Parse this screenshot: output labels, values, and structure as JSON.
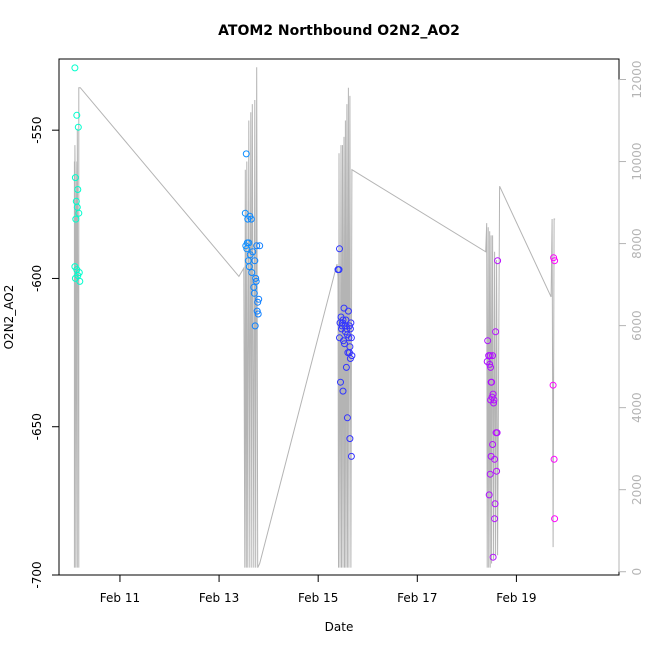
{
  "chart_data": {
    "type": "scatter",
    "title": "ATOM2 Northbound O2N2_AO2",
    "xlabel": "Date",
    "ylabel": "O2N2_AO2",
    "x_ticks": [
      {
        "value": 11.0,
        "label": "Feb 11"
      },
      {
        "value": 13.0,
        "label": "Feb 13"
      },
      {
        "value": 15.0,
        "label": "Feb 15"
      },
      {
        "value": 17.0,
        "label": "Feb 17"
      },
      {
        "value": 19.0,
        "label": "Feb 19"
      }
    ],
    "xlim": [
      9.77,
      21.07
    ],
    "ylim": [
      -700,
      -526
    ],
    "y_ticks": [
      -700,
      -650,
      -600,
      -550
    ],
    "y2lim": [
      -80,
      12500
    ],
    "y2_ticks": [
      0,
      2000,
      4000,
      6000,
      8000,
      10000,
      12000
    ],
    "points": [
      {
        "x": 10.09,
        "y": -529.0
      },
      {
        "x": 10.13,
        "y": -545.0
      },
      {
        "x": 10.16,
        "y": -549.0
      },
      {
        "x": 10.1,
        "y": -566.0
      },
      {
        "x": 10.15,
        "y": -570.0
      },
      {
        "x": 10.12,
        "y": -574.0
      },
      {
        "x": 10.14,
        "y": -576.0
      },
      {
        "x": 10.17,
        "y": -578.0
      },
      {
        "x": 10.11,
        "y": -580.0
      },
      {
        "x": 10.09,
        "y": -596.0
      },
      {
        "x": 10.13,
        "y": -597.0
      },
      {
        "x": 10.18,
        "y": -598.0
      },
      {
        "x": 10.15,
        "y": -599.0
      },
      {
        "x": 10.1,
        "y": -600.0
      },
      {
        "x": 10.19,
        "y": -601.0
      },
      {
        "x": 13.55,
        "y": -558.0
      },
      {
        "x": 13.53,
        "y": -578.0
      },
      {
        "x": 13.62,
        "y": -579.0
      },
      {
        "x": 13.58,
        "y": -580.0
      },
      {
        "x": 13.65,
        "y": -580.0
      },
      {
        "x": 13.57,
        "y": -588.0
      },
      {
        "x": 13.6,
        "y": -588.0
      },
      {
        "x": 13.76,
        "y": -589.0
      },
      {
        "x": 13.82,
        "y": -589.0
      },
      {
        "x": 13.54,
        "y": -589.0
      },
      {
        "x": 13.56,
        "y": -590.0
      },
      {
        "x": 13.68,
        "y": -591.0
      },
      {
        "x": 13.63,
        "y": -592.0
      },
      {
        "x": 13.59,
        "y": -594.0
      },
      {
        "x": 13.72,
        "y": -594.0
      },
      {
        "x": 13.61,
        "y": -596.0
      },
      {
        "x": 13.66,
        "y": -598.0
      },
      {
        "x": 13.74,
        "y": -600.0
      },
      {
        "x": 13.75,
        "y": -601.0
      },
      {
        "x": 13.7,
        "y": -603.0
      },
      {
        "x": 13.71,
        "y": -605.0
      },
      {
        "x": 13.8,
        "y": -607.0
      },
      {
        "x": 13.78,
        "y": -608.0
      },
      {
        "x": 13.77,
        "y": -611.0
      },
      {
        "x": 13.79,
        "y": -612.0
      },
      {
        "x": 13.73,
        "y": -616.0
      },
      {
        "x": 15.43,
        "y": -590.0
      },
      {
        "x": 15.4,
        "y": -597.0
      },
      {
        "x": 15.42,
        "y": -597.0
      },
      {
        "x": 15.52,
        "y": -610.0
      },
      {
        "x": 15.61,
        "y": -611.0
      },
      {
        "x": 15.46,
        "y": -613.0
      },
      {
        "x": 15.5,
        "y": -614.0
      },
      {
        "x": 15.56,
        "y": -614.0
      },
      {
        "x": 15.44,
        "y": -615.0
      },
      {
        "x": 15.49,
        "y": -615.0
      },
      {
        "x": 15.66,
        "y": -615.0
      },
      {
        "x": 15.48,
        "y": -616.0
      },
      {
        "x": 15.54,
        "y": -616.0
      },
      {
        "x": 15.63,
        "y": -616.0
      },
      {
        "x": 15.47,
        "y": -617.0
      },
      {
        "x": 15.58,
        "y": -617.0
      },
      {
        "x": 15.55,
        "y": -618.0
      },
      {
        "x": 15.65,
        "y": -617.0
      },
      {
        "x": 15.59,
        "y": -619.0
      },
      {
        "x": 15.43,
        "y": -620.0
      },
      {
        "x": 15.62,
        "y": -620.0
      },
      {
        "x": 15.67,
        "y": -620.0
      },
      {
        "x": 15.51,
        "y": -621.0
      },
      {
        "x": 15.53,
        "y": -622.0
      },
      {
        "x": 15.64,
        "y": -623.0
      },
      {
        "x": 15.6,
        "y": -625.0
      },
      {
        "x": 15.63,
        "y": -625.0
      },
      {
        "x": 15.68,
        "y": -626.0
      },
      {
        "x": 15.65,
        "y": -627.0
      },
      {
        "x": 15.57,
        "y": -630.0
      },
      {
        "x": 15.45,
        "y": -635.0
      },
      {
        "x": 15.5,
        "y": -638.0
      },
      {
        "x": 15.59,
        "y": -647.0
      },
      {
        "x": 15.64,
        "y": -654.0
      },
      {
        "x": 15.67,
        "y": -660.0
      },
      {
        "x": 18.62,
        "y": -594.0
      },
      {
        "x": 18.58,
        "y": -618.0
      },
      {
        "x": 18.42,
        "y": -621.0
      },
      {
        "x": 18.44,
        "y": -626.0
      },
      {
        "x": 18.47,
        "y": -626.0
      },
      {
        "x": 18.52,
        "y": -626.0
      },
      {
        "x": 18.41,
        "y": -628.0
      },
      {
        "x": 18.46,
        "y": -629.0
      },
      {
        "x": 18.48,
        "y": -630.0
      },
      {
        "x": 18.49,
        "y": -635.0
      },
      {
        "x": 18.5,
        "y": -635.0
      },
      {
        "x": 18.51,
        "y": -640.0
      },
      {
        "x": 18.53,
        "y": -639.0
      },
      {
        "x": 18.55,
        "y": -641.0
      },
      {
        "x": 18.48,
        "y": -641.0
      },
      {
        "x": 18.54,
        "y": -642.0
      },
      {
        "x": 18.61,
        "y": -652.0
      },
      {
        "x": 18.59,
        "y": -652.0
      },
      {
        "x": 18.52,
        "y": -656.0
      },
      {
        "x": 18.49,
        "y": -660.0
      },
      {
        "x": 18.56,
        "y": -661.0
      },
      {
        "x": 18.6,
        "y": -665.0
      },
      {
        "x": 18.47,
        "y": -666.0
      },
      {
        "x": 18.45,
        "y": -673.0
      },
      {
        "x": 18.57,
        "y": -676.0
      },
      {
        "x": 18.56,
        "y": -681.0
      },
      {
        "x": 18.53,
        "y": -694.0
      },
      {
        "x": 19.75,
        "y": -593.0
      },
      {
        "x": 19.77,
        "y": -594.0
      },
      {
        "x": 19.74,
        "y": -636.0
      },
      {
        "x": 19.76,
        "y": -661.0
      },
      {
        "x": 19.77,
        "y": -681.0
      }
    ],
    "color_scale": [
      "#00ffcc",
      "#00ccff",
      "#1e3cff",
      "#6a1eff",
      "#ff00ff"
    ],
    "colors": {
      "background": "#ffffff",
      "axis": "#000000",
      "secondary_series": "#b4b4b4"
    },
    "secondary_series": [
      [
        10.08,
        10000
      ],
      [
        10.08,
        100
      ],
      [
        10.09,
        10400
      ],
      [
        10.1,
        8800
      ],
      [
        10.11,
        100
      ],
      [
        10.12,
        8400
      ],
      [
        10.13,
        10000
      ],
      [
        10.13,
        8200
      ],
      [
        10.14,
        100
      ],
      [
        10.14,
        10800
      ],
      [
        10.15,
        6800
      ],
      [
        10.16,
        7200
      ],
      [
        10.17,
        100
      ],
      [
        10.17,
        11800
      ],
      [
        10.2,
        11800
      ],
      [
        13.4,
        7200
      ],
      [
        13.5,
        7400
      ],
      [
        13.52,
        100
      ],
      [
        13.53,
        9800
      ],
      [
        13.55,
        100
      ],
      [
        13.56,
        10000
      ],
      [
        13.58,
        100
      ],
      [
        13.6,
        11000
      ],
      [
        13.62,
        100
      ],
      [
        13.64,
        11200
      ],
      [
        13.66,
        100
      ],
      [
        13.67,
        11400
      ],
      [
        13.7,
        100
      ],
      [
        13.72,
        11500
      ],
      [
        13.74,
        100
      ],
      [
        13.76,
        12300
      ],
      [
        13.78,
        100
      ],
      [
        13.82,
        200
      ],
      [
        15.38,
        7500
      ],
      [
        15.4,
        7200
      ],
      [
        15.41,
        100
      ],
      [
        15.42,
        10200
      ],
      [
        15.44,
        100
      ],
      [
        15.46,
        10400
      ],
      [
        15.47,
        100
      ],
      [
        15.49,
        10400
      ],
      [
        15.5,
        100
      ],
      [
        15.52,
        10600
      ],
      [
        15.53,
        100
      ],
      [
        15.55,
        11000
      ],
      [
        15.56,
        100
      ],
      [
        15.58,
        11400
      ],
      [
        15.59,
        100
      ],
      [
        15.61,
        11800
      ],
      [
        15.62,
        100
      ],
      [
        15.64,
        11600
      ],
      [
        15.66,
        100
      ],
      [
        15.68,
        9800
      ],
      [
        18.38,
        7800
      ],
      [
        18.4,
        8500
      ],
      [
        18.41,
        100
      ],
      [
        18.43,
        8400
      ],
      [
        18.44,
        100
      ],
      [
        18.46,
        8300
      ],
      [
        18.47,
        100
      ],
      [
        18.49,
        8200
      ],
      [
        18.5,
        200
      ],
      [
        18.52,
        8200
      ],
      [
        18.54,
        300
      ],
      [
        18.56,
        7800
      ],
      [
        18.58,
        400
      ],
      [
        18.6,
        7600
      ],
      [
        18.62,
        400
      ],
      [
        18.66,
        9400
      ],
      [
        19.7,
        6700
      ],
      [
        19.72,
        8600
      ],
      [
        19.74,
        600
      ],
      [
        19.76,
        8600
      ],
      [
        19.78,
        8600
      ]
    ]
  }
}
